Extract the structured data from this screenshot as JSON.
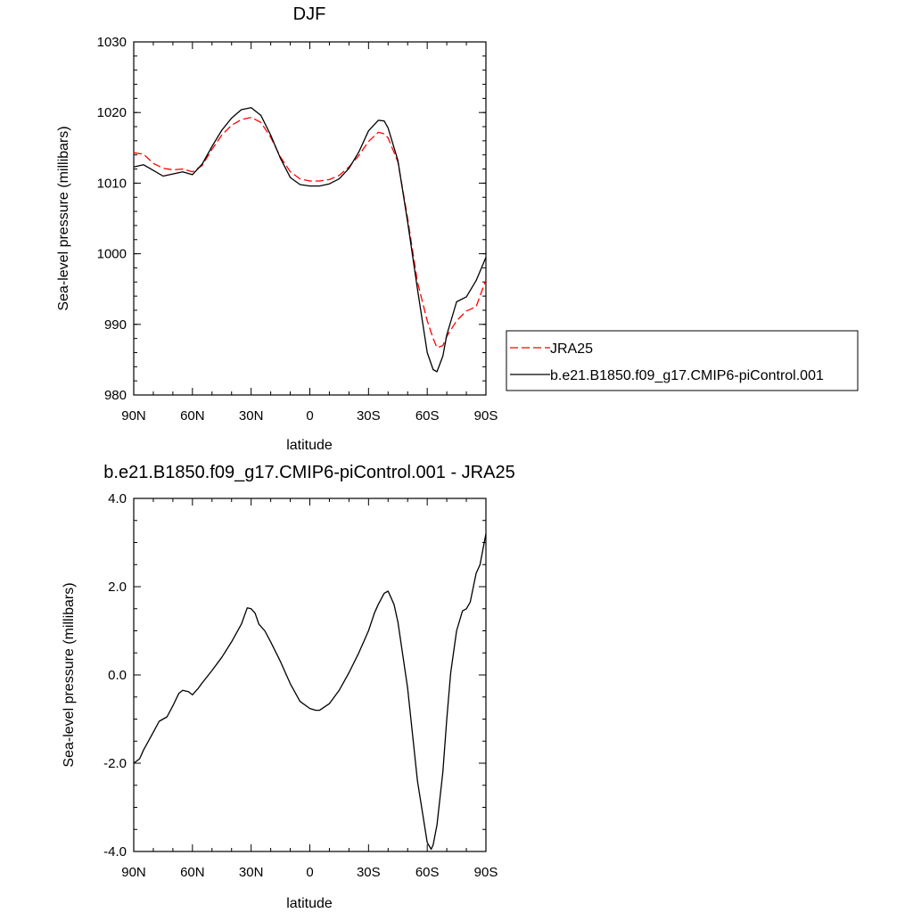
{
  "chart_data": [
    {
      "type": "line",
      "title": "DJF",
      "xlabel": "latitude",
      "ylabel": "Sea-level pressure (millibars)",
      "xlim": [
        90,
        -90
      ],
      "ylim": [
        980,
        1030
      ],
      "x_ticks": [
        90,
        60,
        30,
        0,
        -30,
        -60,
        -90
      ],
      "x_tick_labels": [
        "90N",
        "60N",
        "30N",
        "0",
        "30S",
        "60S",
        "90S"
      ],
      "y_ticks": [
        980,
        990,
        1000,
        1010,
        1020,
        1030
      ],
      "y_tick_labels": [
        "980",
        "990",
        "1000",
        "1010",
        "1020",
        "1030"
      ],
      "legend_position": "right",
      "series": [
        {
          "name": "JRA25",
          "color": "#ff0000",
          "dash": "dashed",
          "x": [
            90,
            85,
            80,
            75,
            70,
            65,
            60,
            55,
            50,
            45,
            40,
            35,
            30,
            25,
            20,
            15,
            10,
            5,
            0,
            -5,
            -10,
            -15,
            -20,
            -25,
            -30,
            -35,
            -38,
            -40,
            -45,
            -50,
            -55,
            -60,
            -63,
            -65,
            -68,
            -70,
            -75,
            -80,
            -85,
            -90
          ],
          "values": [
            1014.3,
            1014.1,
            1012.8,
            1012.1,
            1011.9,
            1012.0,
            1011.6,
            1012.5,
            1014.8,
            1016.8,
            1018.2,
            1019.0,
            1019.3,
            1018.6,
            1016.5,
            1013.7,
            1011.6,
            1010.6,
            1010.3,
            1010.3,
            1010.5,
            1011.1,
            1012.3,
            1013.9,
            1015.9,
            1017.2,
            1017.0,
            1016.4,
            1013.0,
            1005.0,
            996.0,
            990.5,
            988.0,
            986.7,
            987.0,
            988.3,
            990.5,
            991.9,
            992.5,
            996.3
          ]
        },
        {
          "name": "b.e21.B1850.f09_g17.CMIP6-piControl.001",
          "color": "#000000",
          "dash": "solid",
          "x": [
            90,
            85,
            80,
            75,
            70,
            65,
            60,
            55,
            50,
            45,
            40,
            35,
            30,
            25,
            20,
            15,
            10,
            5,
            0,
            -5,
            -10,
            -15,
            -20,
            -25,
            -30,
            -35,
            -38,
            -40,
            -45,
            -50,
            -55,
            -60,
            -63,
            -65,
            -68,
            -70,
            -75,
            -80,
            -85,
            -90
          ],
          "values": [
            1012.3,
            1012.6,
            1011.8,
            1011.0,
            1011.3,
            1011.6,
            1011.2,
            1012.7,
            1015.2,
            1017.5,
            1019.2,
            1020.4,
            1020.7,
            1019.6,
            1016.8,
            1013.5,
            1010.8,
            1009.8,
            1009.6,
            1009.6,
            1009.9,
            1010.6,
            1012.1,
            1014.4,
            1017.4,
            1018.9,
            1018.8,
            1017.8,
            1013.2,
            1004.5,
            995.0,
            986.0,
            983.6,
            983.3,
            985.5,
            988.5,
            993.2,
            993.9,
            996.2,
            999.5
          ]
        }
      ]
    },
    {
      "type": "line",
      "title": "b.e21.B1850.f09_g17.CMIP6-piControl.001 - JRA25",
      "xlabel": "latitude",
      "ylabel": "Sea-level pressure (millibars)",
      "xlim": [
        90,
        -90
      ],
      "ylim": [
        -4.0,
        4.0
      ],
      "x_ticks": [
        90,
        60,
        30,
        0,
        -30,
        -60,
        -90
      ],
      "x_tick_labels": [
        "90N",
        "60N",
        "30N",
        "0",
        "30S",
        "60S",
        "90S"
      ],
      "y_ticks": [
        -4.0,
        -2.0,
        0.0,
        2.0,
        4.0
      ],
      "y_tick_labels": [
        "-4.0",
        "-2.0",
        "0.0",
        "2.0",
        "4.0"
      ],
      "series": [
        {
          "color": "#000000",
          "dash": "solid",
          "x": [
            90,
            87,
            85,
            80,
            77,
            75,
            73,
            70,
            67,
            65,
            62,
            60,
            57,
            55,
            50,
            45,
            40,
            35,
            32,
            30,
            28,
            26,
            23,
            20,
            15,
            10,
            5,
            0,
            -3,
            -5,
            -10,
            -15,
            -20,
            -25,
            -30,
            -33,
            -35,
            -38,
            -40,
            -43,
            -45,
            -50,
            -55,
            -60,
            -62,
            -63,
            -65,
            -68,
            -70,
            -72,
            -75,
            -78,
            -80,
            -82,
            -85,
            -87,
            -90
          ],
          "values": [
            -2.0,
            -1.9,
            -1.7,
            -1.3,
            -1.05,
            -1.0,
            -0.95,
            -0.7,
            -0.42,
            -0.35,
            -0.38,
            -0.45,
            -0.3,
            -0.18,
            0.1,
            0.4,
            0.75,
            1.15,
            1.52,
            1.5,
            1.4,
            1.15,
            1.0,
            0.75,
            0.3,
            -0.2,
            -0.6,
            -0.76,
            -0.8,
            -0.8,
            -0.65,
            -0.35,
            0.05,
            0.5,
            1.0,
            1.4,
            1.6,
            1.85,
            1.9,
            1.6,
            1.2,
            -0.3,
            -2.4,
            -3.8,
            -3.95,
            -3.85,
            -3.4,
            -2.2,
            -1.0,
            0.05,
            1.0,
            1.45,
            1.5,
            1.65,
            2.3,
            2.5,
            3.2
          ]
        }
      ]
    }
  ]
}
